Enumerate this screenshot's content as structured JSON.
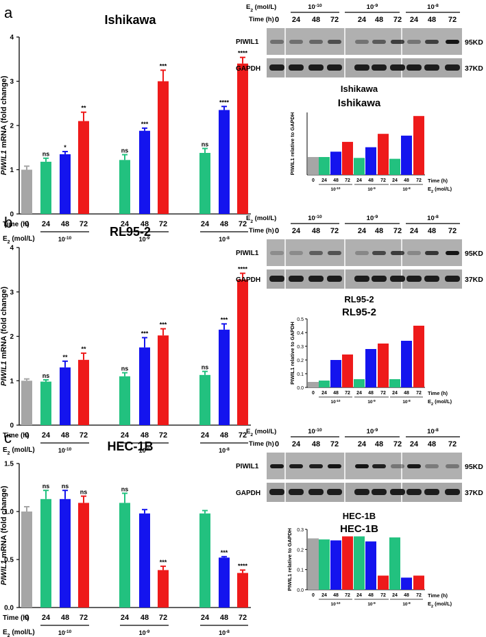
{
  "colors": {
    "gray": "#a6a6a6",
    "green": "#22c17f",
    "blue": "#1414ee",
    "red": "#ee1a1a",
    "blot_bg": "#8c8c8c",
    "blot_band": "#141414"
  },
  "common": {
    "time_label": "Time (h)",
    "e2_label": "E",
    "e2_sub": "2",
    "e2_unit": " (mol/L)",
    "time_values": [
      "0",
      "24",
      "48",
      "72",
      "24",
      "48",
      "72",
      "24",
      "48",
      "72"
    ],
    "conc_base": "10",
    "conc_exps": [
      "-10",
      "-9",
      "-8"
    ],
    "small_ylabel": "PIWIL1 relative to GAPDH",
    "ylabel_italic": "PIWIL1",
    "ylabel_rest": " mRNA (fold change)",
    "blot_time_header": [
      "0",
      "24",
      "48",
      "72",
      "24",
      "48",
      "72",
      "24",
      "48",
      "72"
    ],
    "piwil1_label": "PIWIL1",
    "gapdh_label": "GAPDH",
    "kd_95": "95KD",
    "kd_37": "37KD"
  },
  "panels": [
    {
      "letter": "a",
      "title": "Ishikawa",
      "chart_data": {
        "type": "bar",
        "title": "Ishikawa",
        "ylabel": "PIWIL1 mRNA (fold change)",
        "ylim": [
          0,
          4
        ],
        "yticks": [
          "0",
          "1",
          "2",
          "3",
          "4"
        ],
        "categories": [
          "0",
          "24",
          "48",
          "72",
          "24",
          "48",
          "72",
          "24",
          "48",
          "72"
        ],
        "groups": [
          "10-10",
          "10-9",
          "10-8"
        ],
        "values": [
          1.0,
          1.18,
          1.35,
          2.1,
          1.22,
          1.88,
          3.0,
          1.38,
          2.35,
          3.4
        ],
        "errors": [
          0.08,
          0.08,
          0.06,
          0.2,
          0.12,
          0.06,
          0.25,
          0.1,
          0.08,
          0.14
        ],
        "significance": [
          "",
          "ns",
          "*",
          "**",
          "ns",
          "***",
          "***",
          "ns",
          "****",
          "****"
        ]
      },
      "small_chart": {
        "type": "bar",
        "title1": "Ishikawa",
        "title2": "Ishikawa",
        "ylabel": "PIWIL1 relative to GAPDH",
        "ylim": [
          0,
          0.7
        ],
        "values": [
          0.2,
          0.2,
          0.26,
          0.37,
          0.19,
          0.31,
          0.46,
          0.18,
          0.44,
          0.66
        ]
      }
    },
    {
      "letter": "b",
      "title": "RL95-2",
      "chart_data": {
        "type": "bar",
        "title": "RL95-2",
        "ylabel": "PIWIL1 mRNA (fold change)",
        "ylim": [
          0,
          4
        ],
        "yticks": [
          "0",
          "1",
          "2",
          "3",
          "4"
        ],
        "categories": [
          "0",
          "24",
          "48",
          "72",
          "24",
          "48",
          "72",
          "24",
          "48",
          "72"
        ],
        "groups": [
          "10-10",
          "10-9",
          "10-8"
        ],
        "values": [
          1.0,
          0.98,
          1.3,
          1.47,
          1.1,
          1.75,
          2.02,
          1.13,
          2.15,
          3.28
        ],
        "errors": [
          0.04,
          0.04,
          0.14,
          0.15,
          0.08,
          0.22,
          0.15,
          0.08,
          0.13,
          0.14
        ],
        "significance": [
          "",
          "ns",
          "**",
          "**",
          "ns",
          "***",
          "***",
          "ns",
          "***",
          "****"
        ]
      },
      "small_chart": {
        "type": "bar",
        "title1": "RL95-2",
        "title2": "RL95-2",
        "ylabel": "PIWIL1 relative to GAPDH",
        "ylim": [
          0,
          0.5
        ],
        "yticks": [
          "0.0",
          "0.1",
          "0.2",
          "0.3",
          "0.4",
          "0.5"
        ],
        "values": [
          0.04,
          0.05,
          0.2,
          0.24,
          0.06,
          0.28,
          0.32,
          0.06,
          0.34,
          0.45
        ]
      }
    },
    {
      "letter": "c",
      "title": "HEC-1B",
      "chart_data": {
        "type": "bar",
        "title": "HEC-1B",
        "ylabel": "PIWIL1 mRNA (fold change)",
        "ylim": [
          0,
          1.5
        ],
        "yticks": [
          "0.0",
          "0.5",
          "1.0",
          "1.5"
        ],
        "categories": [
          "0",
          "24",
          "48",
          "72",
          "24",
          "48",
          "72",
          "24",
          "48",
          "72"
        ],
        "groups": [
          "10-10",
          "10-9",
          "10-8"
        ],
        "values": [
          1.0,
          1.13,
          1.13,
          1.09,
          1.09,
          0.98,
          0.39,
          0.98,
          0.52,
          0.36
        ],
        "errors": [
          0.05,
          0.09,
          0.09,
          0.07,
          0.1,
          0.04,
          0.04,
          0.03,
          0.01,
          0.03
        ],
        "significance": [
          "",
          "ns",
          "ns",
          "ns",
          "ns",
          "",
          "***",
          "",
          "***",
          "****"
        ]
      },
      "small_chart": {
        "type": "bar",
        "title1": "HEC-1B",
        "title2": "HEC-1B",
        "ylabel": "PIWIL1 relative to GAPDH",
        "ylim": [
          0,
          0.3
        ],
        "yticks": [
          "0.0",
          "0.1",
          "0.2",
          "0.3"
        ],
        "values": [
          0.255,
          0.25,
          0.245,
          0.265,
          0.265,
          0.24,
          0.07,
          0.26,
          0.06,
          0.07
        ]
      }
    }
  ]
}
